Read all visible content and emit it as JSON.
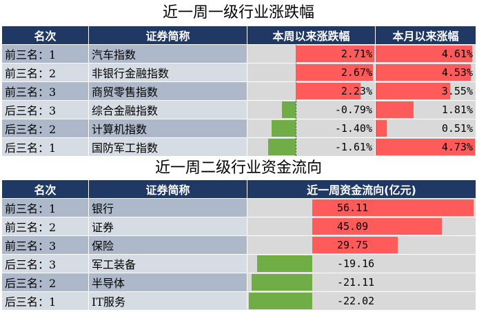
{
  "table1": {
    "title": "近一周一级行业涨跌幅",
    "headers": [
      "名次",
      "证券简称",
      "本周以来涨跌幅",
      "本月以来涨幅"
    ],
    "rows": [
      {
        "rank": "前三名：1",
        "name": "汽车指数",
        "week": 2.71,
        "week_text": "2.71%",
        "month": 4.61,
        "month_text": "4.61%"
      },
      {
        "rank": "前三名：2",
        "name": "非银行金融指数",
        "week": 2.67,
        "week_text": "2.67%",
        "month": 4.53,
        "month_text": "4.53%"
      },
      {
        "rank": "前三名：3",
        "name": "商贸零售指数",
        "week": 2.23,
        "week_text": "2.23%",
        "month": 3.55,
        "month_text": "3.55%"
      },
      {
        "rank": "后三名：3",
        "name": "综合金融指数",
        "week": -0.79,
        "week_text": "-0.79%",
        "month": 1.81,
        "month_text": "1.81%"
      },
      {
        "rank": "后三名：2",
        "name": "计算机指数",
        "week": -1.4,
        "week_text": "-1.40%",
        "month": 0.51,
        "month_text": "0.51%"
      },
      {
        "rank": "后三名：1",
        "name": "国防军工指数",
        "week": -1.61,
        "week_text": "-1.61%",
        "month": 4.73,
        "month_text": "4.73%"
      }
    ]
  },
  "table2": {
    "title": "近一周二级行业资金流向",
    "headers": [
      "名次",
      "证券简称",
      "近一周资金流向(亿元)"
    ],
    "rows": [
      {
        "rank": "前三名：1",
        "name": "银行",
        "flow": 56.11,
        "flow_text": "56.11"
      },
      {
        "rank": "前三名：2",
        "name": "证券",
        "flow": 45.09,
        "flow_text": "45.09"
      },
      {
        "rank": "前三名：3",
        "name": "保险",
        "flow": 29.75,
        "flow_text": "29.75"
      },
      {
        "rank": "后三名：3",
        "name": "军工装备",
        "flow": -19.16,
        "flow_text": "-19.16"
      },
      {
        "rank": "后三名：2",
        "name": "半导体",
        "flow": -21.11,
        "flow_text": "-21.11"
      },
      {
        "rank": "后三名：1",
        "name": "IT服务",
        "flow": -22.02,
        "flow_text": "-22.02"
      }
    ]
  },
  "colors": {
    "positive": "#ff5b5b",
    "negative": "#70ad47",
    "header": "#1f3864"
  }
}
